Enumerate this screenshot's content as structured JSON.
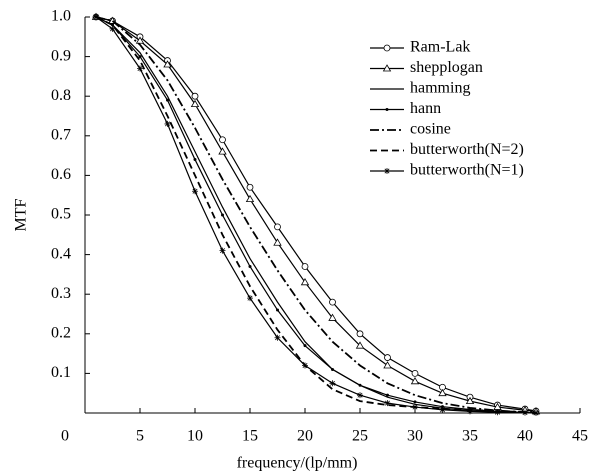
{
  "chart_data": {
    "type": "line",
    "xlabel": "frequency/(lp/mm)",
    "ylabel": "MTF",
    "x": [
      1,
      2.5,
      5,
      7.5,
      10,
      12.5,
      15,
      17.5,
      20,
      22.5,
      25,
      27.5,
      30,
      32.5,
      35,
      37.5,
      40,
      41
    ],
    "series": [
      {
        "name": "Ram-Lak",
        "color": "#000000",
        "dash": "solid",
        "marker": "circle",
        "values": [
          1.0,
          0.99,
          0.95,
          0.89,
          0.8,
          0.69,
          0.57,
          0.47,
          0.37,
          0.28,
          0.2,
          0.14,
          0.1,
          0.065,
          0.04,
          0.02,
          0.01,
          0.005
        ]
      },
      {
        "name": "shepplogan",
        "color": "#000000",
        "dash": "solid",
        "marker": "triangle",
        "values": [
          1.0,
          0.99,
          0.94,
          0.88,
          0.78,
          0.66,
          0.54,
          0.43,
          0.33,
          0.24,
          0.17,
          0.12,
          0.08,
          0.05,
          0.03,
          0.015,
          0.007,
          0.004
        ]
      },
      {
        "name": "hamming",
        "color": "#000000",
        "dash": "solid",
        "marker": "none",
        "values": [
          1.0,
          0.98,
          0.91,
          0.8,
          0.66,
          0.52,
          0.39,
          0.28,
          0.18,
          0.11,
          0.07,
          0.04,
          0.022,
          0.012,
          0.006,
          0.003,
          0.001,
          0
        ]
      },
      {
        "name": "hann",
        "color": "#000000",
        "dash": "solid",
        "marker": "dot",
        "values": [
          1.0,
          0.98,
          0.9,
          0.79,
          0.64,
          0.5,
          0.37,
          0.26,
          0.17,
          0.11,
          0.07,
          0.045,
          0.028,
          0.016,
          0.009,
          0.004,
          0.001,
          0
        ]
      },
      {
        "name": "cosine",
        "color": "#000000",
        "dash": "dashdot",
        "marker": "none",
        "values": [
          1.0,
          0.99,
          0.93,
          0.84,
          0.72,
          0.59,
          0.47,
          0.36,
          0.26,
          0.18,
          0.12,
          0.075,
          0.045,
          0.025,
          0.013,
          0.006,
          0.002,
          0.001
        ]
      },
      {
        "name": "butterworth(N=2)",
        "color": "#000000",
        "dash": "dashed",
        "marker": "none",
        "values": [
          1.0,
          0.98,
          0.89,
          0.75,
          0.6,
          0.45,
          0.32,
          0.21,
          0.12,
          0.06,
          0.03,
          0.02,
          0.015,
          0.01,
          0.008,
          0.005,
          0.002,
          0
        ]
      },
      {
        "name": "butterworth(N=1)",
        "color": "#000000",
        "dash": "solid",
        "marker": "star",
        "values": [
          1.0,
          0.97,
          0.87,
          0.73,
          0.56,
          0.41,
          0.29,
          0.19,
          0.12,
          0.075,
          0.045,
          0.025,
          0.015,
          0.008,
          0.004,
          0.002,
          0.001,
          0
        ]
      }
    ],
    "xlim": [
      0,
      45
    ],
    "xticks": [
      0,
      5,
      10,
      15,
      20,
      25,
      30,
      35,
      40,
      45
    ],
    "ylim": [
      0,
      1
    ],
    "yticks": [
      0.1,
      0.2,
      0.3,
      0.4,
      0.5,
      0.6,
      0.7,
      0.8,
      0.9,
      {
        "value": 1,
        "label": "1.0"
      }
    ],
    "legend": "upper right",
    "grid": false
  }
}
